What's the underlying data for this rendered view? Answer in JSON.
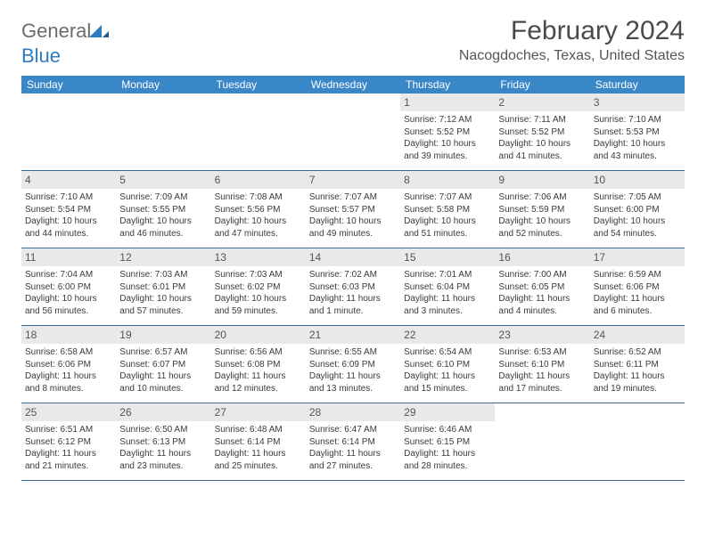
{
  "logo": {
    "text1": "General",
    "text2": "Blue"
  },
  "title": "February 2024",
  "location": "Nacogdoches, Texas, United States",
  "colors": {
    "header_bar": "#3a87c8",
    "header_text": "#ffffff",
    "row_divider": "#3a6a9a",
    "daynum_bg": "#e9e9e9",
    "body_text": "#3a3a3a",
    "logo_gray": "#6b6b6b",
    "logo_blue": "#2f7bbf",
    "background": "#ffffff"
  },
  "typography": {
    "title_fontsize": 30,
    "location_fontsize": 16,
    "dow_fontsize": 12,
    "daynum_fontsize": 12,
    "body_fontsize": 10,
    "logo_fontsize": 22
  },
  "days_of_week": [
    "Sunday",
    "Monday",
    "Tuesday",
    "Wednesday",
    "Thursday",
    "Friday",
    "Saturday"
  ],
  "weeks": [
    [
      null,
      null,
      null,
      null,
      {
        "num": "1",
        "sunrise": "7:12 AM",
        "sunset": "5:52 PM",
        "daylight": "10 hours and 39 minutes."
      },
      {
        "num": "2",
        "sunrise": "7:11 AM",
        "sunset": "5:52 PM",
        "daylight": "10 hours and 41 minutes."
      },
      {
        "num": "3",
        "sunrise": "7:10 AM",
        "sunset": "5:53 PM",
        "daylight": "10 hours and 43 minutes."
      }
    ],
    [
      {
        "num": "4",
        "sunrise": "7:10 AM",
        "sunset": "5:54 PM",
        "daylight": "10 hours and 44 minutes."
      },
      {
        "num": "5",
        "sunrise": "7:09 AM",
        "sunset": "5:55 PM",
        "daylight": "10 hours and 46 minutes."
      },
      {
        "num": "6",
        "sunrise": "7:08 AM",
        "sunset": "5:56 PM",
        "daylight": "10 hours and 47 minutes."
      },
      {
        "num": "7",
        "sunrise": "7:07 AM",
        "sunset": "5:57 PM",
        "daylight": "10 hours and 49 minutes."
      },
      {
        "num": "8",
        "sunrise": "7:07 AM",
        "sunset": "5:58 PM",
        "daylight": "10 hours and 51 minutes."
      },
      {
        "num": "9",
        "sunrise": "7:06 AM",
        "sunset": "5:59 PM",
        "daylight": "10 hours and 52 minutes."
      },
      {
        "num": "10",
        "sunrise": "7:05 AM",
        "sunset": "6:00 PM",
        "daylight": "10 hours and 54 minutes."
      }
    ],
    [
      {
        "num": "11",
        "sunrise": "7:04 AM",
        "sunset": "6:00 PM",
        "daylight": "10 hours and 56 minutes."
      },
      {
        "num": "12",
        "sunrise": "7:03 AM",
        "sunset": "6:01 PM",
        "daylight": "10 hours and 57 minutes."
      },
      {
        "num": "13",
        "sunrise": "7:03 AM",
        "sunset": "6:02 PM",
        "daylight": "10 hours and 59 minutes."
      },
      {
        "num": "14",
        "sunrise": "7:02 AM",
        "sunset": "6:03 PM",
        "daylight": "11 hours and 1 minute."
      },
      {
        "num": "15",
        "sunrise": "7:01 AM",
        "sunset": "6:04 PM",
        "daylight": "11 hours and 3 minutes."
      },
      {
        "num": "16",
        "sunrise": "7:00 AM",
        "sunset": "6:05 PM",
        "daylight": "11 hours and 4 minutes."
      },
      {
        "num": "17",
        "sunrise": "6:59 AM",
        "sunset": "6:06 PM",
        "daylight": "11 hours and 6 minutes."
      }
    ],
    [
      {
        "num": "18",
        "sunrise": "6:58 AM",
        "sunset": "6:06 PM",
        "daylight": "11 hours and 8 minutes."
      },
      {
        "num": "19",
        "sunrise": "6:57 AM",
        "sunset": "6:07 PM",
        "daylight": "11 hours and 10 minutes."
      },
      {
        "num": "20",
        "sunrise": "6:56 AM",
        "sunset": "6:08 PM",
        "daylight": "11 hours and 12 minutes."
      },
      {
        "num": "21",
        "sunrise": "6:55 AM",
        "sunset": "6:09 PM",
        "daylight": "11 hours and 13 minutes."
      },
      {
        "num": "22",
        "sunrise": "6:54 AM",
        "sunset": "6:10 PM",
        "daylight": "11 hours and 15 minutes."
      },
      {
        "num": "23",
        "sunrise": "6:53 AM",
        "sunset": "6:10 PM",
        "daylight": "11 hours and 17 minutes."
      },
      {
        "num": "24",
        "sunrise": "6:52 AM",
        "sunset": "6:11 PM",
        "daylight": "11 hours and 19 minutes."
      }
    ],
    [
      {
        "num": "25",
        "sunrise": "6:51 AM",
        "sunset": "6:12 PM",
        "daylight": "11 hours and 21 minutes."
      },
      {
        "num": "26",
        "sunrise": "6:50 AM",
        "sunset": "6:13 PM",
        "daylight": "11 hours and 23 minutes."
      },
      {
        "num": "27",
        "sunrise": "6:48 AM",
        "sunset": "6:14 PM",
        "daylight": "11 hours and 25 minutes."
      },
      {
        "num": "28",
        "sunrise": "6:47 AM",
        "sunset": "6:14 PM",
        "daylight": "11 hours and 27 minutes."
      },
      {
        "num": "29",
        "sunrise": "6:46 AM",
        "sunset": "6:15 PM",
        "daylight": "11 hours and 28 minutes."
      },
      null,
      null
    ]
  ]
}
